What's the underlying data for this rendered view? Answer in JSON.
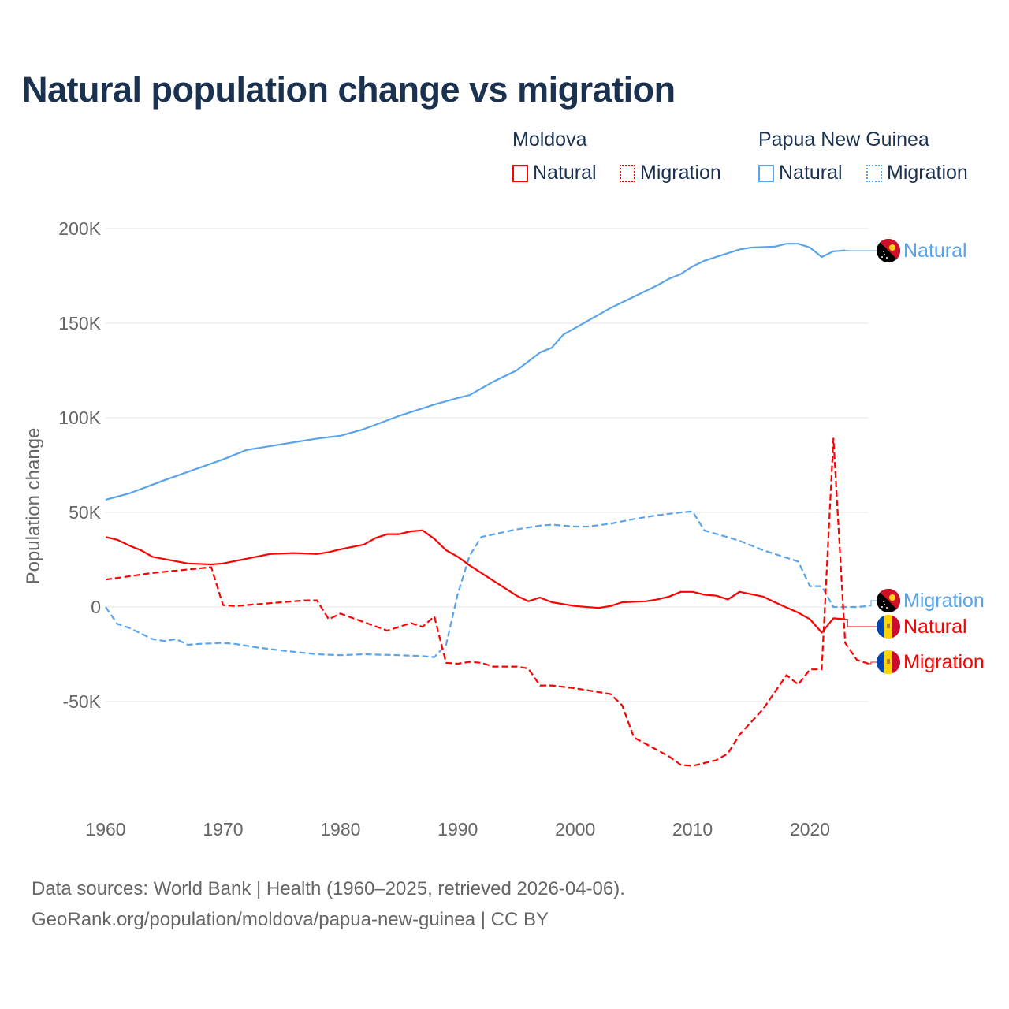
{
  "title": "Natural population change vs migration",
  "legend": {
    "groups": [
      {
        "name": "Moldova",
        "items": [
          "Natural",
          "Migration"
        ]
      },
      {
        "name": "Papua New Guinea",
        "items": [
          "Natural",
          "Migration"
        ]
      }
    ]
  },
  "colors": {
    "moldova": "#ff0000",
    "png": "#5ba4ea",
    "title": "#1a3150"
  },
  "footer": {
    "line1": "Data sources: World Bank | Health (1960–2025, retrieved 2026-04-06).",
    "line2": "GeoRank.org/population/moldova/papua-new-guinea | CC BY"
  },
  "chart_data": {
    "type": "line",
    "title": "Natural population change vs migration",
    "xlabel": "",
    "ylabel": "Population change",
    "xlim": [
      1960,
      2025
    ],
    "ylim": [
      -100000,
      200000
    ],
    "x_ticks": [
      "1960",
      "1970",
      "1980",
      "1990",
      "2000",
      "2010",
      "2020"
    ],
    "y_ticks": [
      "200K",
      "150K",
      "100K",
      "50K",
      "0",
      "-50K"
    ],
    "grid": true,
    "series": [
      {
        "name": "Papua New Guinea Natural",
        "end_label": "Natural",
        "country": "png",
        "style": "solid",
        "x": [
          1960,
          1962,
          1965,
          1970,
          1972,
          1975,
          1978,
          1980,
          1982,
          1985,
          1988,
          1990,
          1991,
          1993,
          1995,
          1997,
          1998,
          1999,
          2001,
          2003,
          2005,
          2007,
          2008,
          2009,
          2010,
          2011,
          2013,
          2014,
          2015,
          2017,
          2018,
          2019,
          2020,
          2021,
          2022,
          2023
        ],
        "y": [
          56700,
          60000,
          67000,
          78000,
          83000,
          86000,
          89000,
          90500,
          94000,
          101000,
          107000,
          110500,
          112000,
          119000,
          125000,
          134500,
          137000,
          144000,
          151000,
          158000,
          164000,
          170000,
          173500,
          176000,
          180000,
          183000,
          187000,
          189000,
          190000,
          190500,
          192000,
          192000,
          190000,
          185000,
          188000,
          188500
        ]
      },
      {
        "name": "Papua New Guinea Migration",
        "end_label": "Migration",
        "country": "png",
        "style": "dashed",
        "x": [
          1960,
          1961,
          1962,
          1964,
          1965,
          1966,
          1967,
          1968,
          1970,
          1971,
          1973,
          1975,
          1978,
          1980,
          1982,
          1985,
          1987,
          1988,
          1989,
          1990,
          1991,
          1992,
          1995,
          1997,
          1998,
          2000,
          2001,
          2003,
          2005,
          2007,
          2009,
          2010,
          2011,
          2014,
          2016,
          2018,
          2019,
          2020,
          2021,
          2022,
          2023,
          2024,
          2025
        ],
        "y": [
          0,
          -9000,
          -11000,
          -17000,
          -18000,
          -17000,
          -20000,
          -19500,
          -19000,
          -19500,
          -21500,
          -23000,
          -25000,
          -25500,
          -25000,
          -25500,
          -26000,
          -26500,
          -20000,
          7000,
          27000,
          37000,
          41000,
          43000,
          43500,
          42500,
          42500,
          44000,
          46500,
          48500,
          50000,
          50500,
          40500,
          35000,
          30000,
          26000,
          24000,
          11000,
          11000,
          0,
          0,
          0,
          500
        ]
      },
      {
        "name": "Moldova Natural",
        "end_label": "Natural",
        "country": "moldova",
        "style": "solid",
        "x": [
          1960,
          1961,
          1962,
          1963,
          1964,
          1967,
          1969,
          1970,
          1972,
          1974,
          1976,
          1978,
          1979,
          1980,
          1982,
          1983,
          1984,
          1985,
          1986,
          1987,
          1988,
          1989,
          1990,
          1991,
          1993,
          1995,
          1996,
          1997,
          1998,
          2000,
          2002,
          2003,
          2004,
          2006,
          2007,
          2008,
          2009,
          2010,
          2011,
          2012,
          2013,
          2014,
          2016,
          2017,
          2019,
          2020,
          2021,
          2022,
          2023
        ],
        "y": [
          37000,
          35500,
          32500,
          30000,
          26500,
          23000,
          22500,
          23000,
          25500,
          28000,
          28500,
          28000,
          29000,
          30500,
          33000,
          36500,
          38500,
          38500,
          40000,
          40500,
          36000,
          30000,
          26500,
          22000,
          14000,
          6000,
          3000,
          5000,
          2500,
          500,
          -500,
          500,
          2500,
          3000,
          4000,
          5500,
          8000,
          8000,
          6500,
          6000,
          4000,
          8000,
          5500,
          2500,
          -3000,
          -6500,
          -13500,
          -6000,
          -6500
        ]
      },
      {
        "name": "Moldova Migration",
        "end_label": "Migration",
        "country": "moldova",
        "style": "dashed",
        "x": [
          1960,
          1964,
          1969,
          1970,
          1971,
          1977,
          1978,
          1979,
          1980,
          1982,
          1984,
          1986,
          1987,
          1988,
          1989,
          1990,
          1991,
          1992,
          1993,
          1995,
          1996,
          1997,
          1998,
          2000,
          2001,
          2003,
          2004,
          2005,
          2008,
          2009,
          2010,
          2011,
          2012,
          2013,
          2014,
          2016,
          2018,
          2019,
          2020,
          2021,
          2022,
          2023,
          2024,
          2025
        ],
        "y": [
          14500,
          18000,
          21000,
          1000,
          500,
          3500,
          3500,
          -6500,
          -3500,
          -8000,
          -12500,
          -8500,
          -10500,
          -5000,
          -29500,
          -30000,
          -29000,
          -29500,
          -31500,
          -31500,
          -32500,
          -41500,
          -41500,
          -43000,
          -44000,
          -46000,
          -52000,
          -69000,
          -79000,
          -83500,
          -84000,
          -82500,
          -81000,
          -77500,
          -67500,
          -54000,
          -36000,
          -41000,
          -33000,
          -33000,
          89000,
          -19000,
          -28000,
          -30000
        ]
      }
    ]
  }
}
